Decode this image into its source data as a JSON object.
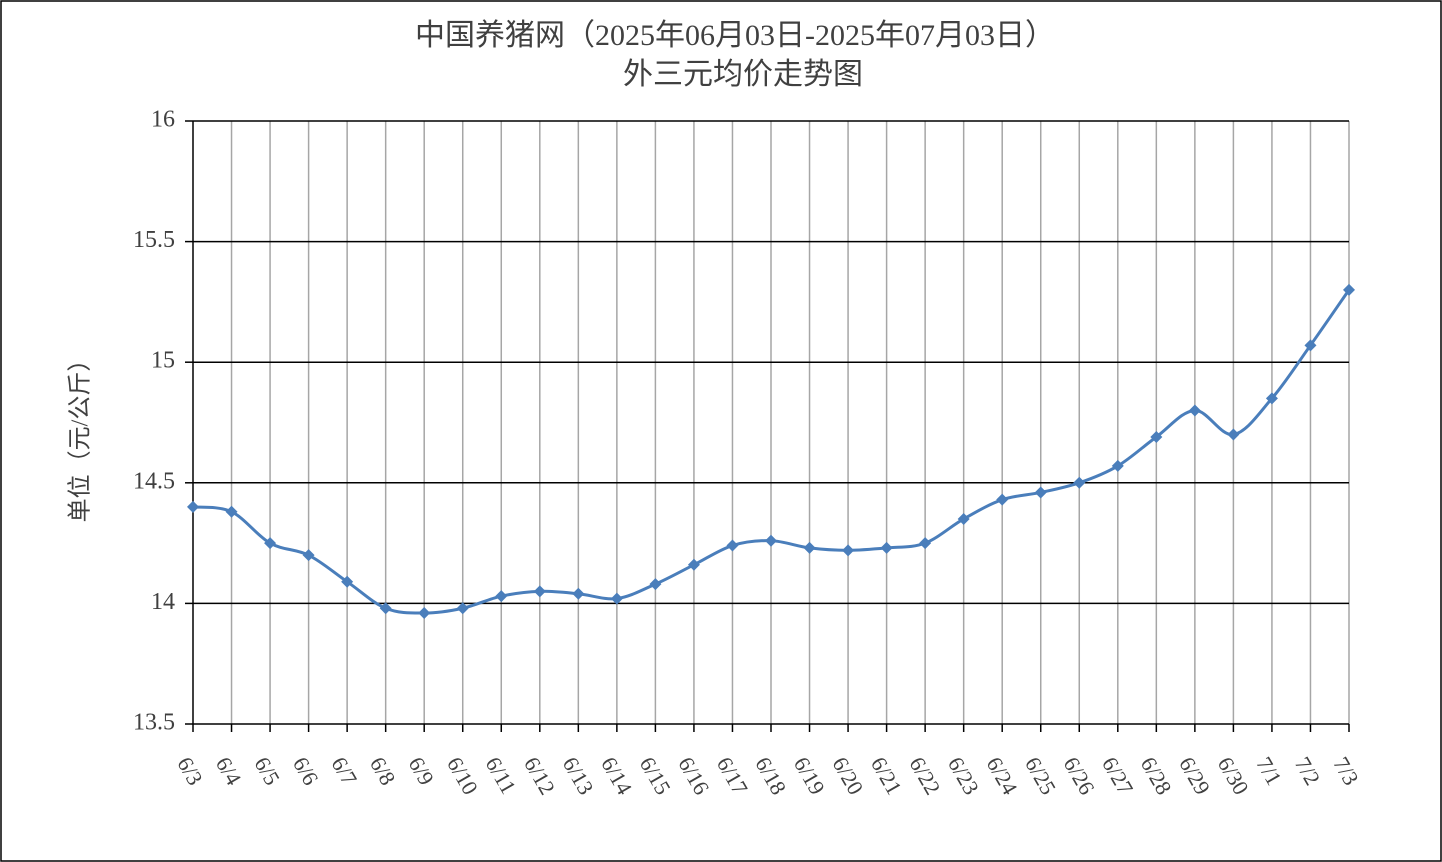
{
  "chart_data": {
    "type": "line",
    "title": "中国养猪网（2025年06月03日-2025年07月03日）",
    "subtitle": "外三元均价走势图",
    "y_label": "单位（元/公斤）",
    "categories": [
      "6/3",
      "6/4",
      "6/5",
      "6/6",
      "6/7",
      "6/8",
      "6/9",
      "6/10",
      "6/11",
      "6/12",
      "6/13",
      "6/14",
      "6/15",
      "6/16",
      "6/17",
      "6/18",
      "6/19",
      "6/20",
      "6/21",
      "6/22",
      "6/23",
      "6/24",
      "6/25",
      "6/26",
      "6/27",
      "6/28",
      "6/29",
      "6/30",
      "7/1",
      "7/2",
      "7/3"
    ],
    "series": [
      {
        "name": "外三元",
        "color": "#4a7ebb",
        "values": [
          14.4,
          14.38,
          14.25,
          14.2,
          14.09,
          13.98,
          13.96,
          13.98,
          14.03,
          14.05,
          14.04,
          14.02,
          14.08,
          14.16,
          14.24,
          14.26,
          14.23,
          14.22,
          14.23,
          14.25,
          14.35,
          14.43,
          14.46,
          14.5,
          14.57,
          14.69,
          14.8,
          14.7,
          14.85,
          15.07,
          15.3
        ]
      }
    ],
    "ylim": [
      13.5,
      16
    ],
    "yticks": [
      13.5,
      14,
      14.5,
      15,
      15.5,
      16
    ],
    "grid": true
  }
}
